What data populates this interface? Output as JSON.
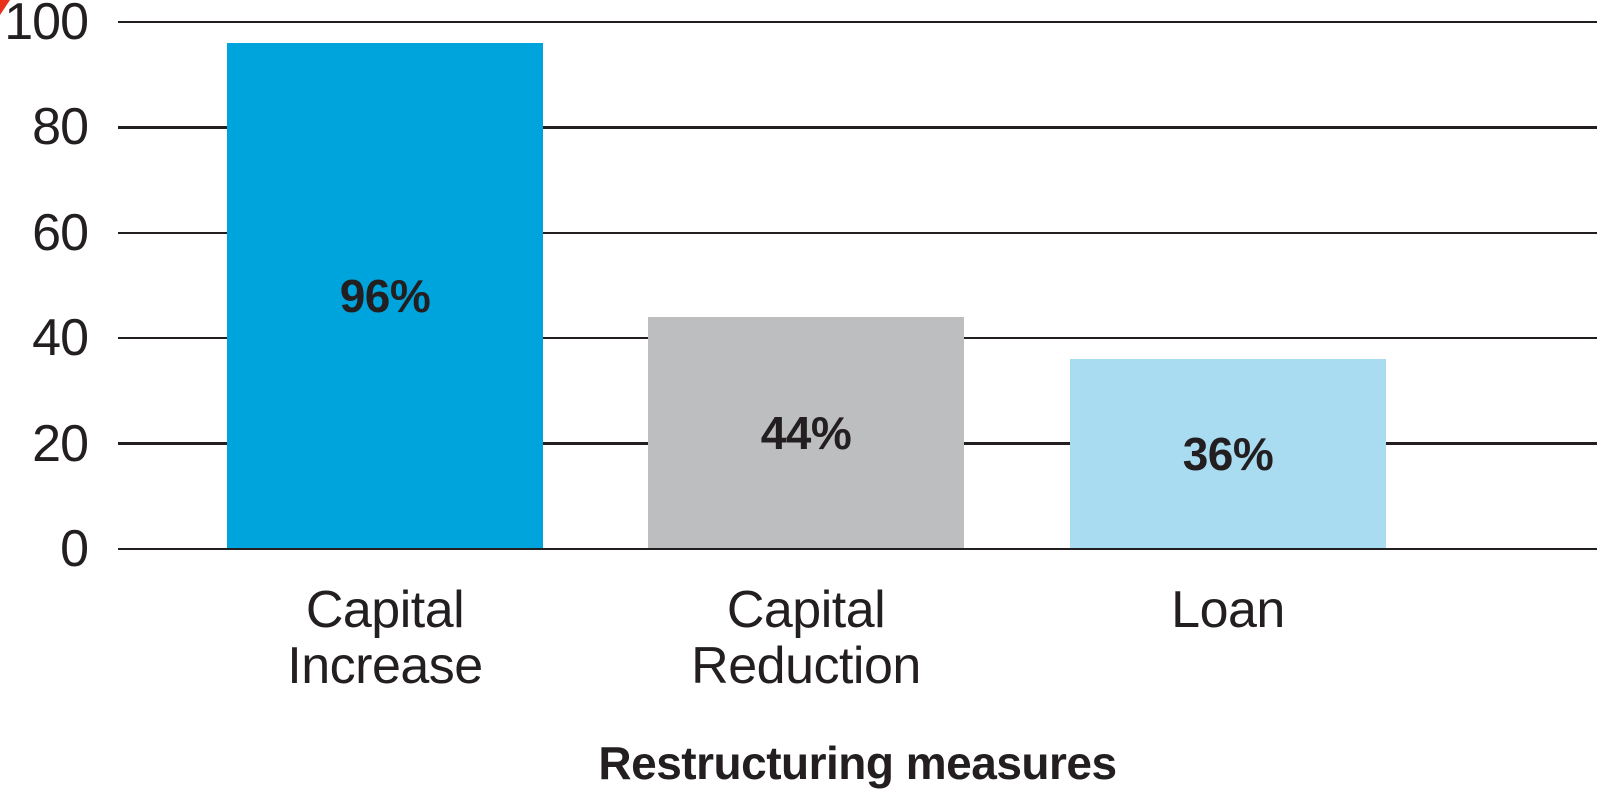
{
  "chart_data": {
    "type": "bar",
    "categories": [
      "Capital Increase",
      "Capital Reduction",
      "Loan"
    ],
    "values": [
      96,
      44,
      36
    ],
    "value_labels": [
      "96%",
      "44%",
      "36%"
    ],
    "bar_colors": [
      "#00A4DC",
      "#BDBEC0",
      "#A9DBF1"
    ],
    "title": "",
    "xlabel": "Restructuring measures",
    "ylabel": "",
    "ylim": [
      0,
      100
    ],
    "yticks": [
      0,
      20,
      40,
      60,
      80,
      100
    ],
    "ytick_labels": [
      "0",
      "20",
      "40",
      "60",
      "80",
      "100"
    ],
    "grid": true,
    "legend": false,
    "value_labels_position": "inside-center"
  },
  "colors": {
    "text": "#231F20",
    "gridline": "#231F20",
    "background": "#FFFFFF",
    "corner_artifact": "#E8321C"
  }
}
